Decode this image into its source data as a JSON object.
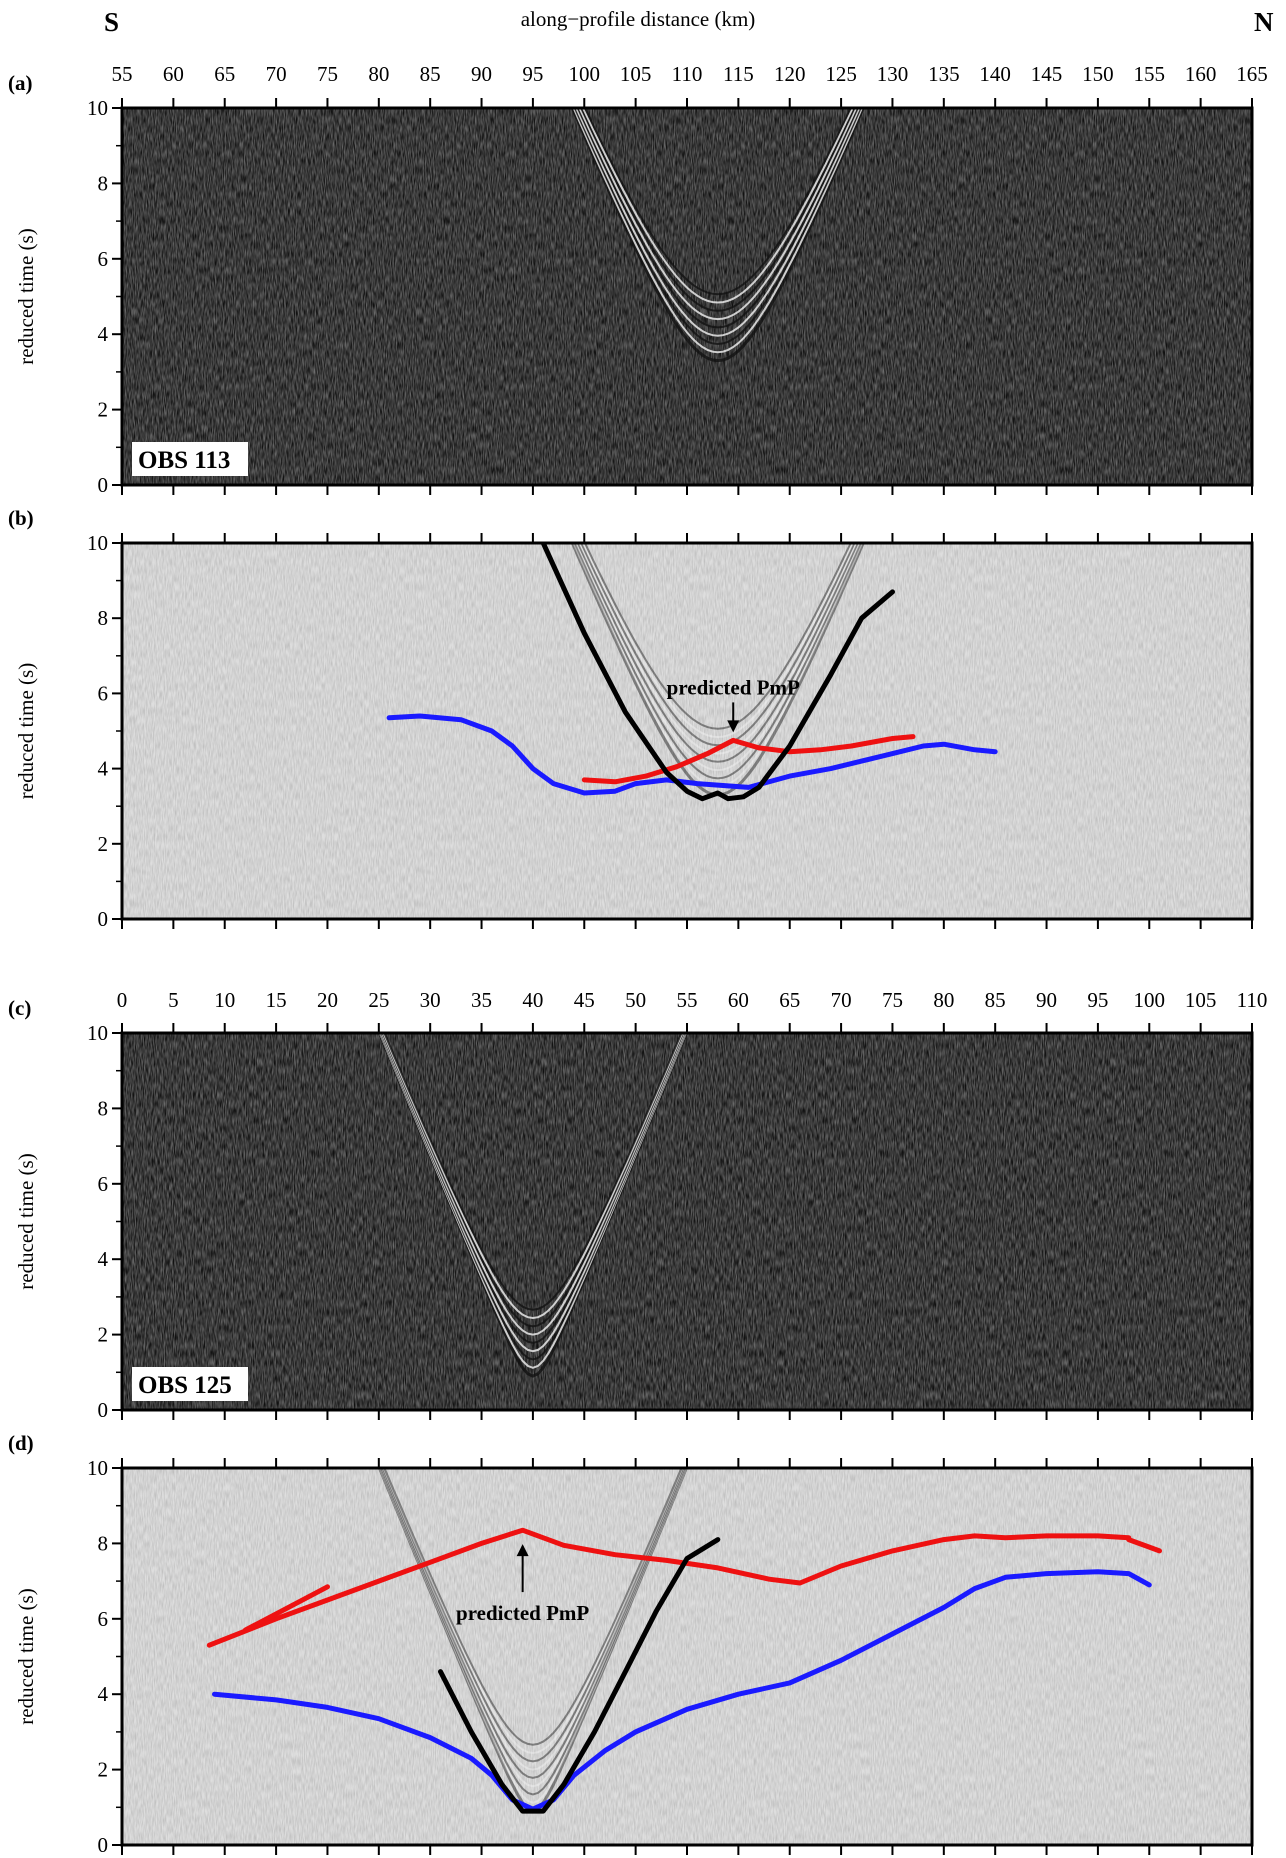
{
  "figure": {
    "top_left_label": "S",
    "top_right_label": "N",
    "top_axis_title": "along−profile distance (km)",
    "ylabel": "reduced time (s)"
  },
  "chart_data": [
    {
      "panel": "(a)",
      "type": "image",
      "station_label": "OBS 113",
      "xlim": [
        55,
        165
      ],
      "ylim": [
        0,
        10
      ],
      "x_ticks": [
        55,
        60,
        65,
        70,
        75,
        80,
        85,
        90,
        95,
        100,
        105,
        110,
        115,
        120,
        125,
        130,
        135,
        140,
        145,
        150,
        155,
        160,
        165
      ],
      "y_ticks": [
        0,
        2,
        4,
        6,
        8,
        10
      ],
      "show_x_tick_labels": true,
      "background": "dark",
      "hyperbola": {
        "apex_x": 113,
        "apex_t": 3.3,
        "velocity": 1.5
      }
    },
    {
      "panel": "(b)",
      "type": "line",
      "xlim": [
        55,
        165
      ],
      "ylim": [
        0,
        10
      ],
      "x_ticks": [
        55,
        60,
        65,
        70,
        75,
        80,
        85,
        90,
        95,
        100,
        105,
        110,
        115,
        120,
        125,
        130,
        135,
        140,
        145,
        150,
        155,
        160,
        165
      ],
      "y_ticks": [
        0,
        2,
        4,
        6,
        8,
        10
      ],
      "show_x_tick_labels": false,
      "background": "light",
      "hyperbola": {
        "apex_x": 113,
        "apex_t": 3.3,
        "velocity": 1.5
      },
      "annotation": {
        "text": "predicted PmP",
        "x": 114.5,
        "t": 4.75
      },
      "series": [
        {
          "role": "picked-first-arrivals",
          "color": "#1a1aff",
          "points": [
            [
              81,
              5.35
            ],
            [
              84,
              5.4
            ],
            [
              88,
              5.3
            ],
            [
              91,
              5.0
            ],
            [
              93,
              4.6
            ],
            [
              95,
              4.0
            ],
            [
              97,
              3.6
            ],
            [
              100,
              3.35
            ],
            [
              103,
              3.4
            ],
            [
              105,
              3.6
            ],
            [
              108,
              3.7
            ],
            [
              111,
              3.6
            ],
            [
              116,
              3.5
            ],
            [
              120,
              3.8
            ],
            [
              124,
              4.0
            ],
            [
              127,
              4.2
            ],
            [
              130,
              4.4
            ],
            [
              133,
              4.6
            ],
            [
              135,
              4.65
            ],
            [
              138,
              4.5
            ],
            [
              140,
              4.45
            ]
          ]
        },
        {
          "role": "predicted-pmp",
          "color": "#ee1111",
          "points": [
            [
              100,
              3.7
            ],
            [
              103,
              3.65
            ],
            [
              106,
              3.8
            ],
            [
              109,
              4.05
            ],
            [
              112,
              4.4
            ],
            [
              114.5,
              4.75
            ],
            [
              117,
              4.55
            ],
            [
              120,
              4.45
            ],
            [
              123,
              4.5
            ],
            [
              126,
              4.6
            ],
            [
              130,
              4.8
            ],
            [
              132,
              4.85
            ]
          ]
        },
        {
          "role": "predicted-first-arrival",
          "color": "#000000",
          "points": [
            [
              96,
              10
            ],
            [
              100,
              7.6
            ],
            [
              104,
              5.5
            ],
            [
              108,
              3.9
            ],
            [
              110,
              3.4
            ],
            [
              111.5,
              3.2
            ],
            [
              113,
              3.35
            ],
            [
              114,
              3.2
            ],
            [
              115.5,
              3.25
            ],
            [
              117,
              3.5
            ],
            [
              120,
              4.6
            ],
            [
              124,
              6.5
            ],
            [
              127,
              8.0
            ],
            [
              130,
              8.7
            ]
          ]
        }
      ]
    },
    {
      "panel": "(c)",
      "type": "image",
      "station_label": "OBS 125",
      "xlim": [
        0,
        110
      ],
      "ylim": [
        0,
        10
      ],
      "x_ticks": [
        0,
        5,
        10,
        15,
        20,
        25,
        30,
        35,
        40,
        45,
        50,
        55,
        60,
        65,
        70,
        75,
        80,
        85,
        90,
        95,
        100,
        105,
        110
      ],
      "y_ticks": [
        0,
        2,
        4,
        6,
        8,
        10
      ],
      "show_x_tick_labels": true,
      "background": "dark",
      "hyperbola": {
        "apex_x": 40,
        "apex_t": 0.9,
        "velocity": 1.5
      }
    },
    {
      "panel": "(d)",
      "type": "line",
      "xlim": [
        0,
        110
      ],
      "ylim": [
        0,
        10
      ],
      "x_ticks": [
        0,
        5,
        10,
        15,
        20,
        25,
        30,
        35,
        40,
        45,
        50,
        55,
        60,
        65,
        70,
        75,
        80,
        85,
        90,
        95,
        100,
        105,
        110
      ],
      "y_ticks": [
        0,
        2,
        4,
        6,
        8,
        10
      ],
      "show_x_tick_labels": false,
      "background": "light",
      "hyperbola": {
        "apex_x": 40,
        "apex_t": 0.9,
        "velocity": 1.5
      },
      "annotation": {
        "text": "predicted PmP",
        "x": 39,
        "t": 8.3
      },
      "series": [
        {
          "role": "picked-first-arrivals",
          "color": "#1a1aff",
          "points": [
            [
              9,
              4.0
            ],
            [
              15,
              3.85
            ],
            [
              20,
              3.65
            ],
            [
              25,
              3.35
            ],
            [
              30,
              2.85
            ],
            [
              34,
              2.3
            ],
            [
              36,
              1.85
            ],
            [
              38,
              1.2
            ],
            [
              40,
              0.95
            ],
            [
              42,
              1.2
            ],
            [
              44,
              1.85
            ],
            [
              47,
              2.5
            ],
            [
              50,
              3.0
            ],
            [
              55,
              3.6
            ],
            [
              60,
              4.0
            ],
            [
              65,
              4.3
            ],
            [
              70,
              4.9
            ],
            [
              75,
              5.6
            ],
            [
              80,
              6.3
            ],
            [
              83,
              6.8
            ],
            [
              86,
              7.1
            ],
            [
              90,
              7.2
            ],
            [
              95,
              7.25
            ],
            [
              98,
              7.2
            ],
            [
              100,
              6.9
            ]
          ]
        },
        {
          "role": "predicted-pmp",
          "color": "#ee1111",
          "points": [
            [
              8.5,
              5.3
            ],
            [
              15,
              6.0
            ],
            [
              20,
              6.5
            ],
            [
              25,
              7.0
            ],
            [
              30,
              7.5
            ],
            [
              35,
              8.0
            ],
            [
              39,
              8.35
            ],
            [
              43,
              7.95
            ],
            [
              48,
              7.7
            ],
            [
              53,
              7.55
            ],
            [
              58,
              7.35
            ],
            [
              63,
              7.05
            ],
            [
              66,
              6.95
            ],
            [
              70,
              7.4
            ],
            [
              75,
              7.8
            ],
            [
              80,
              8.1
            ],
            [
              83,
              8.2
            ],
            [
              86,
              8.15
            ],
            [
              90,
              8.2
            ],
            [
              95,
              8.2
            ],
            [
              98,
              8.15
            ]
          ]
        },
        {
          "role": "red-segment-1",
          "color": "#ee1111",
          "points": [
            [
              12,
              5.7
            ],
            [
              20,
              6.85
            ]
          ]
        },
        {
          "role": "red-segment-2",
          "color": "#ee1111",
          "points": [
            [
              98,
              8.1
            ],
            [
              101,
              7.8
            ]
          ]
        },
        {
          "role": "predicted-first-arrival",
          "color": "#000000",
          "points": [
            [
              31,
              4.6
            ],
            [
              34,
              3.0
            ],
            [
              37,
              1.6
            ],
            [
              39,
              0.9
            ],
            [
              41,
              0.9
            ],
            [
              43,
              1.6
            ],
            [
              46,
              3.0
            ],
            [
              49,
              4.6
            ],
            [
              52,
              6.2
            ],
            [
              55,
              7.6
            ],
            [
              58,
              8.1
            ]
          ]
        }
      ]
    }
  ]
}
